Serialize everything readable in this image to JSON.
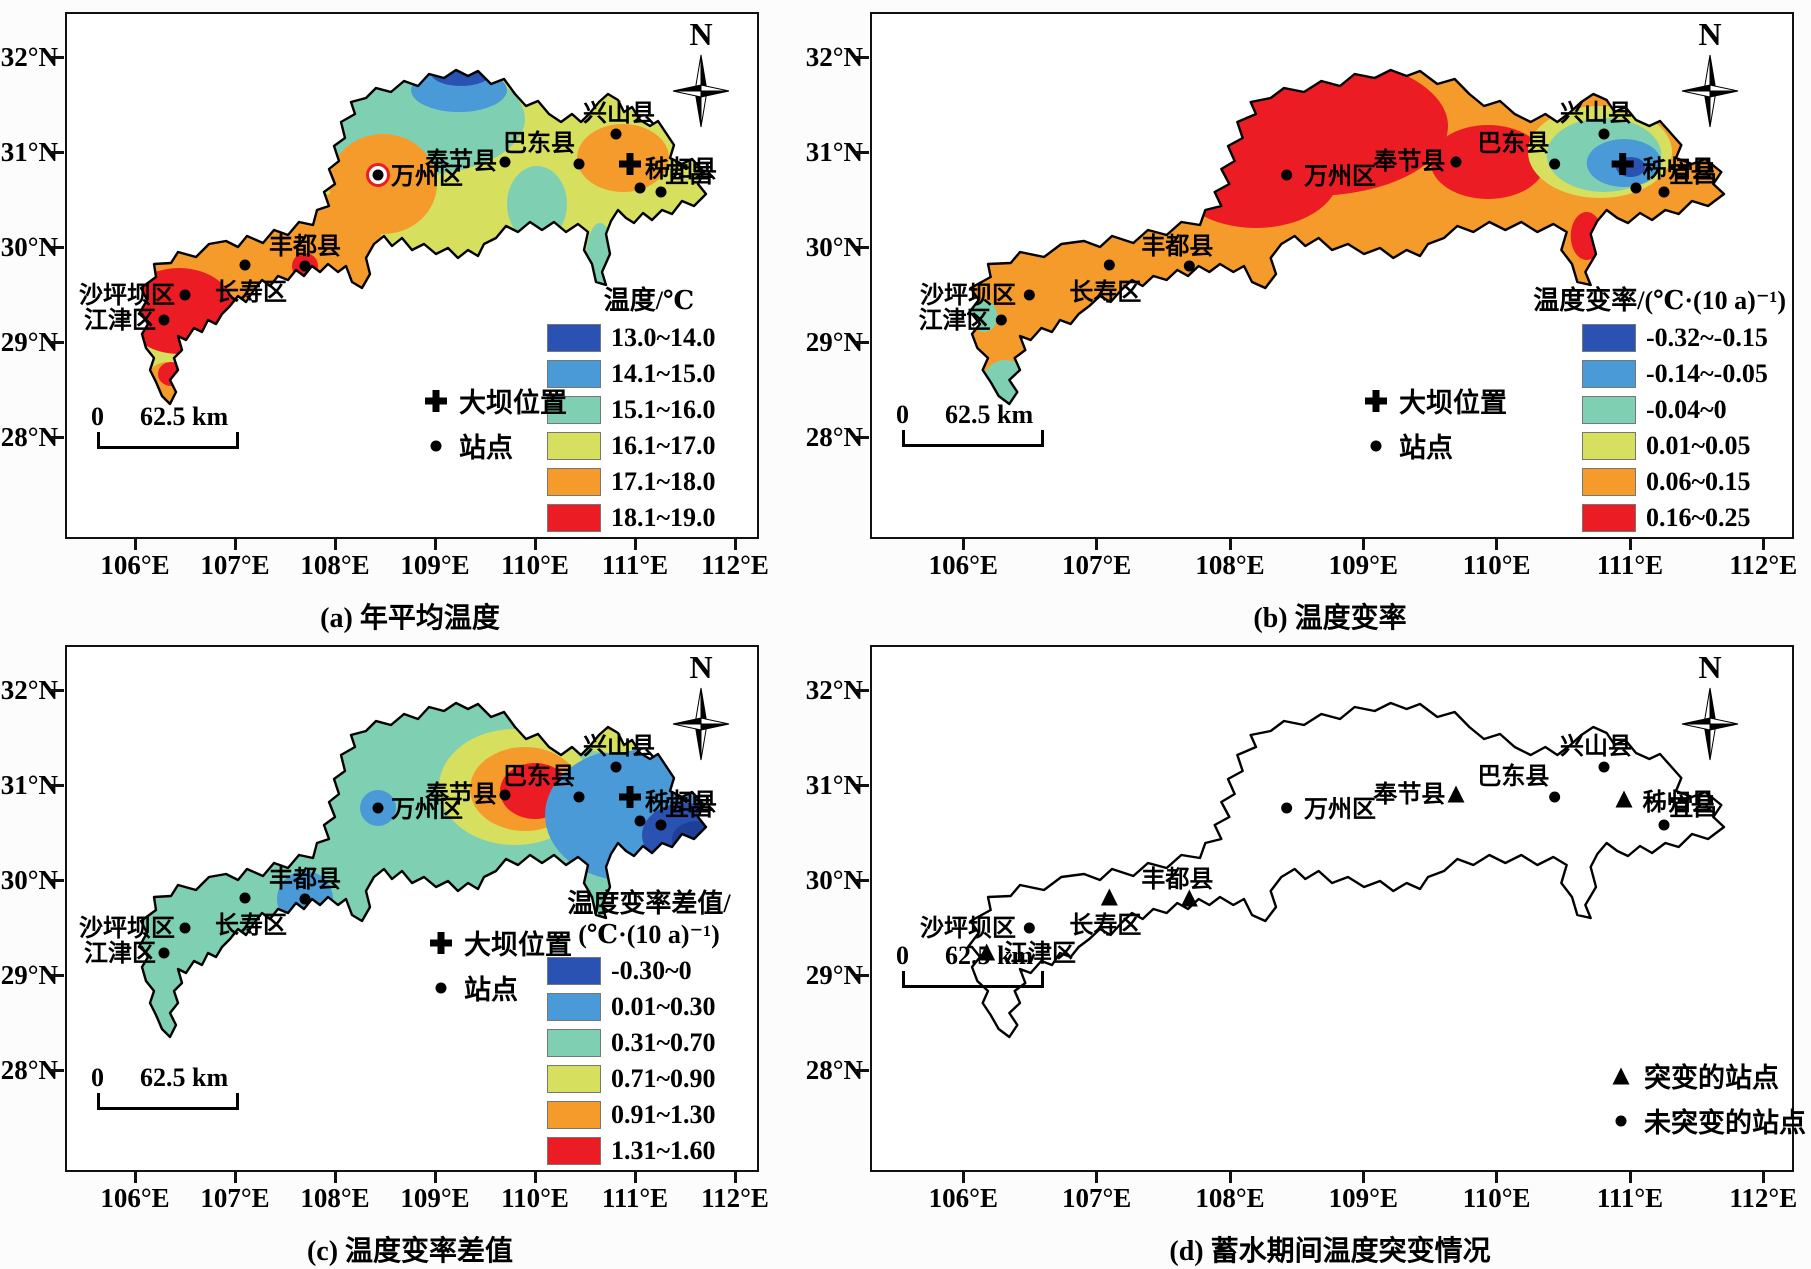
{
  "figure": {
    "compass_label": "N",
    "scale_bar": {
      "zero": "0",
      "label": "62.5 km"
    },
    "y_ticks": [
      "32°N",
      "31°N",
      "30°N",
      "29°N",
      "28°N"
    ],
    "x_ticks": [
      "106°E",
      "107°E",
      "108°E",
      "109°E",
      "110°E",
      "111°E",
      "112°E"
    ]
  },
  "palette": {
    "dark_blue": "#2a52b2",
    "blue": "#4b9ad8",
    "teal": "#7fd0b2",
    "yellow_green": "#d6e05e",
    "orange": "#f59b2b",
    "red": "#ec1c24",
    "navy": "#1d3f96"
  },
  "legend_markers": {
    "dam": "大坝位置",
    "station": "站点",
    "abrupt": "突变的站点",
    "non_abrupt": "未突变的站点"
  },
  "stations": [
    {
      "name": "沙坪坝区",
      "d_marker": "dot"
    },
    {
      "name": "江津区",
      "d_marker": "triangle"
    },
    {
      "name": "长寿区",
      "d_marker": "triangle"
    },
    {
      "name": "丰都县",
      "d_marker": "triangle"
    },
    {
      "name": "万州区",
      "d_marker": "dot"
    },
    {
      "name": "奉节县",
      "d_marker": "triangle"
    },
    {
      "name": "巴东县",
      "d_marker": "dot"
    },
    {
      "name": "兴山县",
      "d_marker": "dot"
    },
    {
      "name": "秭归县",
      "d_marker": "triangle"
    },
    {
      "name": "宜昌",
      "d_marker": "dot"
    }
  ],
  "panels": [
    {
      "id": "a",
      "caption": "(a) 年平均温度",
      "legend_title_lines": [
        "温度/℃"
      ],
      "classes": [
        {
          "label": "13.0~14.0",
          "color_key": "dark_blue"
        },
        {
          "label": "14.1~15.0",
          "color_key": "blue"
        },
        {
          "label": "15.1~16.0",
          "color_key": "teal"
        },
        {
          "label": "16.1~17.0",
          "color_key": "yellow_green"
        },
        {
          "label": "17.1~18.0",
          "color_key": "orange"
        },
        {
          "label": "18.1~19.0",
          "color_key": "red"
        }
      ],
      "show_dam": true
    },
    {
      "id": "b",
      "caption": "(b) 温度变率",
      "legend_title_lines": [
        "温度变率/(℃·(10 a)⁻¹)"
      ],
      "classes": [
        {
          "label": "-0.32~-0.15",
          "color_key": "dark_blue"
        },
        {
          "label": "-0.14~-0.05",
          "color_key": "blue"
        },
        {
          "label": "-0.04~0",
          "color_key": "teal"
        },
        {
          "label": "0.01~0.05",
          "color_key": "yellow_green"
        },
        {
          "label": "0.06~0.15",
          "color_key": "orange"
        },
        {
          "label": "0.16~0.25",
          "color_key": "red"
        }
      ],
      "show_dam": true
    },
    {
      "id": "c",
      "caption": "(c) 温度变率差值",
      "legend_title_lines": [
        "温度变率差值/",
        "(℃·(10 a)⁻¹)"
      ],
      "classes": [
        {
          "label": "-0.30~0",
          "color_key": "dark_blue"
        },
        {
          "label": "0.01~0.30",
          "color_key": "blue"
        },
        {
          "label": "0.31~0.70",
          "color_key": "teal"
        },
        {
          "label": "0.71~0.90",
          "color_key": "yellow_green"
        },
        {
          "label": "0.91~1.30",
          "color_key": "orange"
        },
        {
          "label": "1.31~1.60",
          "color_key": "red"
        }
      ],
      "show_dam": true
    },
    {
      "id": "d",
      "caption": "(d) 蓄水期间温度突变情况",
      "legend_title_lines": [],
      "classes": [],
      "show_dam": false
    }
  ]
}
